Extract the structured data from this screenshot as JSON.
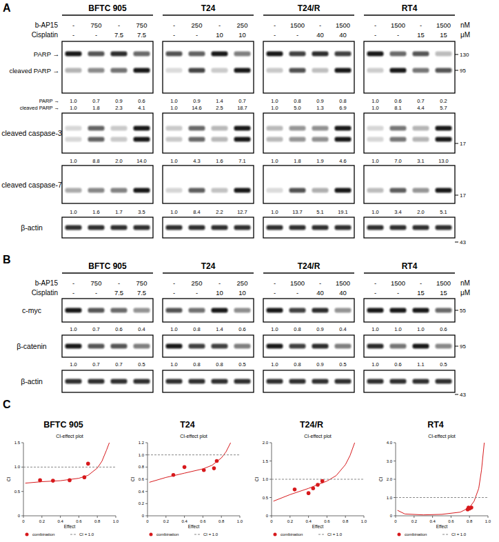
{
  "figure": {
    "panels": [
      {
        "label": "A",
        "treatments": [
          {
            "name": "b-AP15",
            "unit": "nM"
          },
          {
            "name": "Cisplatin",
            "unit": "μM"
          }
        ],
        "cell_lines": [
          {
            "name": "BFTC 905",
            "doses": [
              [
                "-",
                750,
                "-",
                750
              ],
              [
                "-",
                "-",
                7.5,
                7.5
              ]
            ]
          },
          {
            "name": "T24",
            "doses": [
              [
                "-",
                250,
                "-",
                250
              ],
              [
                "-",
                "-",
                10,
                10
              ]
            ]
          },
          {
            "name": "T24/R",
            "doses": [
              [
                "-",
                1500,
                "-",
                1500
              ],
              [
                "-",
                "-",
                40,
                40
              ]
            ]
          },
          {
            "name": "RT4",
            "doses": [
              [
                "-",
                1500,
                "-",
                1500
              ],
              [
                "-",
                "-",
                15,
                15
              ]
            ]
          }
        ],
        "blots": [
          {
            "band_labels": [
              "PARP →",
              "cleaved PARP →"
            ],
            "quant": [
              {
                "label": "PARP →",
                "values": [
                  [
                    1.0,
                    0.7,
                    0.9,
                    0.6
                  ],
                  [
                    1.0,
                    0.9,
                    1.4,
                    0.7
                  ],
                  [
                    1.0,
                    0.8,
                    0.9,
                    0.8
                  ],
                  [
                    1.0,
                    0.6,
                    0.7,
                    0.2
                  ]
                ]
              },
              {
                "label": "cleaved PARP →",
                "values": [
                  [
                    1.0,
                    1.8,
                    2.3,
                    4.1
                  ],
                  [
                    1.0,
                    14.6,
                    2.5,
                    18.7
                  ],
                  [
                    1.0,
                    5.0,
                    1.3,
                    6.9
                  ],
                  [
                    1.0,
                    8.1,
                    4.4,
                    5.7
                  ]
                ]
              }
            ],
            "markers": [
              130,
              95
            ]
          },
          {
            "band_labels": [
              "cleaved caspase-3"
            ],
            "quant": [
              {
                "values": [
                  [
                    1.0,
                    8.8,
                    2.0,
                    14.0
                  ],
                  [
                    1.0,
                    4.3,
                    1.6,
                    7.1
                  ],
                  [
                    1.0,
                    1.8,
                    1.9,
                    4.6
                  ],
                  [
                    1.0,
                    7.0,
                    3.1,
                    13.0
                  ]
                ]
              }
            ],
            "markers": [
              17
            ]
          },
          {
            "band_labels": [
              "cleaved caspase-7"
            ],
            "quant": [
              {
                "values": [
                  [
                    1.0,
                    1.6,
                    1.7,
                    3.5
                  ],
                  [
                    1.0,
                    8.4,
                    2.2,
                    12.7
                  ],
                  [
                    1.0,
                    13.7,
                    5.1,
                    19.1
                  ],
                  [
                    1.0,
                    3.4,
                    2.0,
                    5.1
                  ]
                ]
              }
            ],
            "markers": [
              17
            ]
          },
          {
            "band_labels": [
              "β-actin"
            ],
            "markers": [
              43
            ]
          }
        ]
      },
      {
        "label": "B",
        "treatments": [
          {
            "name": "b-AP15",
            "unit": "nM"
          },
          {
            "name": "Cisplatin",
            "unit": "μM"
          }
        ],
        "cell_lines": [
          {
            "name": "BFTC 905",
            "doses": [
              [
                "-",
                750,
                "-",
                750
              ],
              [
                "-",
                "-",
                7.5,
                7.5
              ]
            ]
          },
          {
            "name": "T24",
            "doses": [
              [
                "-",
                250,
                "-",
                250
              ],
              [
                "-",
                "-",
                10,
                10
              ]
            ]
          },
          {
            "name": "T24/R",
            "doses": [
              [
                "-",
                1500,
                "-",
                1500
              ],
              [
                "-",
                "-",
                40,
                40
              ]
            ]
          },
          {
            "name": "RT4",
            "doses": [
              [
                "-",
                1500,
                "-",
                1500
              ],
              [
                "-",
                "-",
                15,
                15
              ]
            ]
          }
        ],
        "blots": [
          {
            "band_labels": [
              "c-myc"
            ],
            "quant": [
              {
                "values": [
                  [
                    1.0,
                    0.7,
                    0.6,
                    0.4
                  ],
                  [
                    1.0,
                    0.8,
                    1.4,
                    0.6
                  ],
                  [
                    1.0,
                    0.8,
                    0.9,
                    0.4
                  ],
                  [
                    1.0,
                    1.0,
                    1.0,
                    0.6
                  ]
                ]
              }
            ],
            "markers": [
              55
            ]
          },
          {
            "band_labels": [
              "β-catenin"
            ],
            "quant": [
              {
                "values": [
                  [
                    1.0,
                    0.7,
                    0.7,
                    0.5
                  ],
                  [
                    1.0,
                    0.8,
                    0.8,
                    0.5
                  ],
                  [
                    1.0,
                    0.8,
                    0.9,
                    0.5
                  ],
                  [
                    1.0,
                    0.6,
                    1.1,
                    0.5
                  ]
                ]
              }
            ],
            "markers": [
              95
            ]
          },
          {
            "band_labels": [
              "β-actin"
            ],
            "markers": [
              43
            ]
          }
        ]
      },
      {
        "label": "C"
      }
    ]
  },
  "chart_data": [
    {
      "type": "scatter",
      "title": "BFTC 905",
      "subtitle": "CI-effect plot",
      "x_label": "Effect",
      "y_label": "CI",
      "xlim": [
        0,
        1
      ],
      "xticks": [
        0,
        0.2,
        0.4,
        0.6,
        0.8,
        {
          "value": 1,
          "label": "1.0"
        }
      ],
      "ylim": [
        0,
        1.5
      ],
      "yticks": [
        0,
        0.5,
        {
          "value": 1,
          "label": "1.0"
        },
        1.5
      ],
      "series": [
        {
          "name": "combination",
          "type": "scatter",
          "marker": "circle",
          "color": "#d7191c",
          "x": [
            0.18,
            0.32,
            0.5,
            0.66,
            0.7
          ],
          "values": [
            0.73,
            0.72,
            0.73,
            0.79,
            1.07
          ]
        },
        {
          "type": "line",
          "color": "#d7191c",
          "x": [
            0.02,
            0.2,
            0.4,
            0.6,
            0.7,
            0.8,
            0.85,
            0.9,
            0.93
          ],
          "values": [
            0.67,
            0.7,
            0.72,
            0.77,
            0.83,
            0.98,
            1.12,
            1.35,
            1.5
          ]
        },
        {
          "name": "CI = 1.0",
          "type": "line",
          "line_style": "dashed",
          "color": "#888888",
          "x": [
            0,
            1
          ],
          "values": [
            1,
            1
          ]
        }
      ]
    },
    {
      "type": "scatter",
      "title": "T24",
      "subtitle": "CI-effect plot",
      "x_label": "Effect",
      "y_label": "CI",
      "xlim": [
        0,
        1
      ],
      "xticks": [
        0,
        0.2,
        0.4,
        0.6,
        0.8,
        {
          "value": 1,
          "label": "1.0"
        }
      ],
      "ylim": [
        0,
        1.2
      ],
      "yticks": [
        0,
        0.2,
        0.4,
        0.6,
        0.8,
        {
          "value": 1,
          "label": "1.0"
        },
        1.2
      ],
      "series": [
        {
          "name": "combination",
          "type": "scatter",
          "marker": "circle",
          "color": "#d7191c",
          "x": [
            0.28,
            0.4,
            0.61,
            0.72,
            0.75
          ],
          "values": [
            0.67,
            0.8,
            0.75,
            0.78,
            0.9
          ]
        },
        {
          "type": "line",
          "color": "#d7191c",
          "x": [
            0.02,
            0.2,
            0.4,
            0.6,
            0.7,
            0.8,
            0.85,
            0.9
          ],
          "values": [
            0.55,
            0.63,
            0.7,
            0.77,
            0.83,
            0.95,
            1.05,
            1.2
          ]
        },
        {
          "name": "CI = 1.0",
          "type": "line",
          "line_style": "dashed",
          "color": "#888888",
          "x": [
            0,
            1
          ],
          "values": [
            1,
            1
          ]
        }
      ]
    },
    {
      "type": "scatter",
      "title": "T24/R",
      "subtitle": "CI-effect plot",
      "x_label": "Effect",
      "y_label": "CI",
      "xlim": [
        0,
        1
      ],
      "xticks": [
        0,
        0.2,
        0.4,
        0.6,
        0.8,
        {
          "value": 1,
          "label": "1.0"
        }
      ],
      "ylim": [
        0,
        2
      ],
      "yticks": [
        0,
        0.5,
        {
          "value": 1,
          "label": "1.0"
        },
        1.5,
        {
          "value": 2,
          "label": "2.0"
        }
      ],
      "series": [
        {
          "name": "combination",
          "type": "scatter",
          "marker": "circle",
          "color": "#d7191c",
          "x": [
            0.25,
            0.4,
            0.45,
            0.5,
            0.55
          ],
          "values": [
            0.72,
            0.62,
            0.75,
            0.85,
            0.95
          ]
        },
        {
          "type": "line",
          "color": "#d7191c",
          "x": [
            0.02,
            0.2,
            0.4,
            0.6,
            0.7,
            0.8,
            0.85,
            0.9
          ],
          "values": [
            0.4,
            0.58,
            0.75,
            0.95,
            1.1,
            1.4,
            1.65,
            2.0
          ]
        },
        {
          "name": "CI = 1.0",
          "type": "line",
          "line_style": "dashed",
          "color": "#888888",
          "x": [
            0,
            1
          ],
          "values": [
            1,
            1
          ]
        }
      ]
    },
    {
      "type": "scatter",
      "title": "RT4",
      "subtitle": "CI-effect plot",
      "x_label": "Effect",
      "y_label": "CI",
      "xlim": [
        0,
        1
      ],
      "xticks": [
        0,
        0.2,
        0.4,
        0.6,
        0.8,
        {
          "value": 1,
          "label": "1.0"
        }
      ],
      "ylim": [
        0,
        4
      ],
      "yticks": [
        0,
        {
          "value": 1,
          "label": "1.0"
        },
        {
          "value": 2,
          "label": "2.0"
        },
        {
          "value": 3,
          "label": "3.0"
        },
        {
          "value": 4,
          "label": "4.0"
        }
      ],
      "series": [
        {
          "name": "combination",
          "type": "scatter",
          "marker": "circle",
          "color": "#d7191c",
          "x": [
            0.78,
            0.79,
            0.8,
            0.82
          ],
          "values": [
            0.35,
            0.45,
            0.4,
            0.45
          ]
        },
        {
          "type": "line",
          "color": "#d7191c",
          "x": [
            0.02,
            0.1,
            0.3,
            0.5,
            0.7,
            0.8,
            0.85,
            0.9,
            0.93,
            0.96
          ],
          "values": [
            0.3,
            0.1,
            0.05,
            0.08,
            0.2,
            0.45,
            0.8,
            1.5,
            2.5,
            4.0
          ]
        },
        {
          "name": "CI = 1.0",
          "type": "line",
          "line_style": "dashed",
          "color": "#888888",
          "x": [
            0,
            1
          ],
          "values": [
            1,
            1
          ]
        }
      ]
    }
  ]
}
